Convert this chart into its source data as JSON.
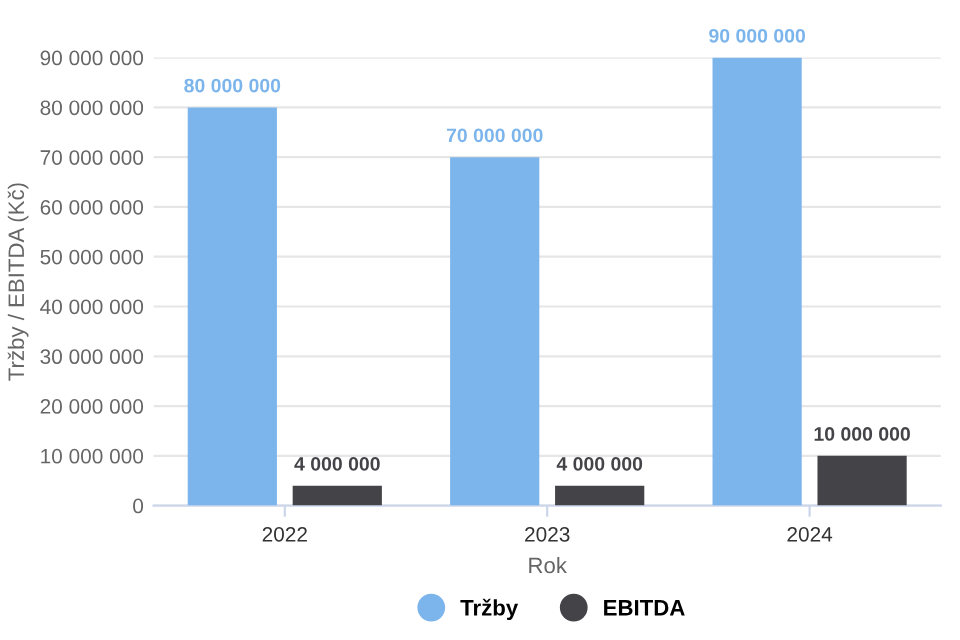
{
  "chart_data": {
    "type": "bar",
    "xlabel": "Rok",
    "ylabel": "Tržby / EBITDA (Kč)",
    "categories": [
      "2022",
      "2023",
      "2024"
    ],
    "series": [
      {
        "name": "Tržby",
        "color": "#7cb5ec",
        "values": [
          80000000,
          70000000,
          90000000
        ],
        "value_labels": [
          "80 000 000",
          "70 000 000",
          "90 000 000"
        ]
      },
      {
        "name": "EBITDA",
        "color": "#434348",
        "values": [
          4000000,
          4000000,
          10000000
        ],
        "value_labels": [
          "4 000 000",
          "4 000 000",
          "10 000 000"
        ]
      }
    ],
    "ylim": [
      0,
      90000000
    ],
    "yticks": [
      {
        "value": 0,
        "label": "0"
      },
      {
        "value": 10000000,
        "label": "10 000 000"
      },
      {
        "value": 20000000,
        "label": "20 000 000"
      },
      {
        "value": 30000000,
        "label": "30 000 000"
      },
      {
        "value": 40000000,
        "label": "40 000 000"
      },
      {
        "value": 50000000,
        "label": "50 000 000"
      },
      {
        "value": 60000000,
        "label": "60 000 000"
      },
      {
        "value": 70000000,
        "label": "70 000 000"
      },
      {
        "value": 80000000,
        "label": "80 000 000"
      },
      {
        "value": 90000000,
        "label": "90 000 000"
      }
    ],
    "grid": "y",
    "legend": "bottom"
  }
}
